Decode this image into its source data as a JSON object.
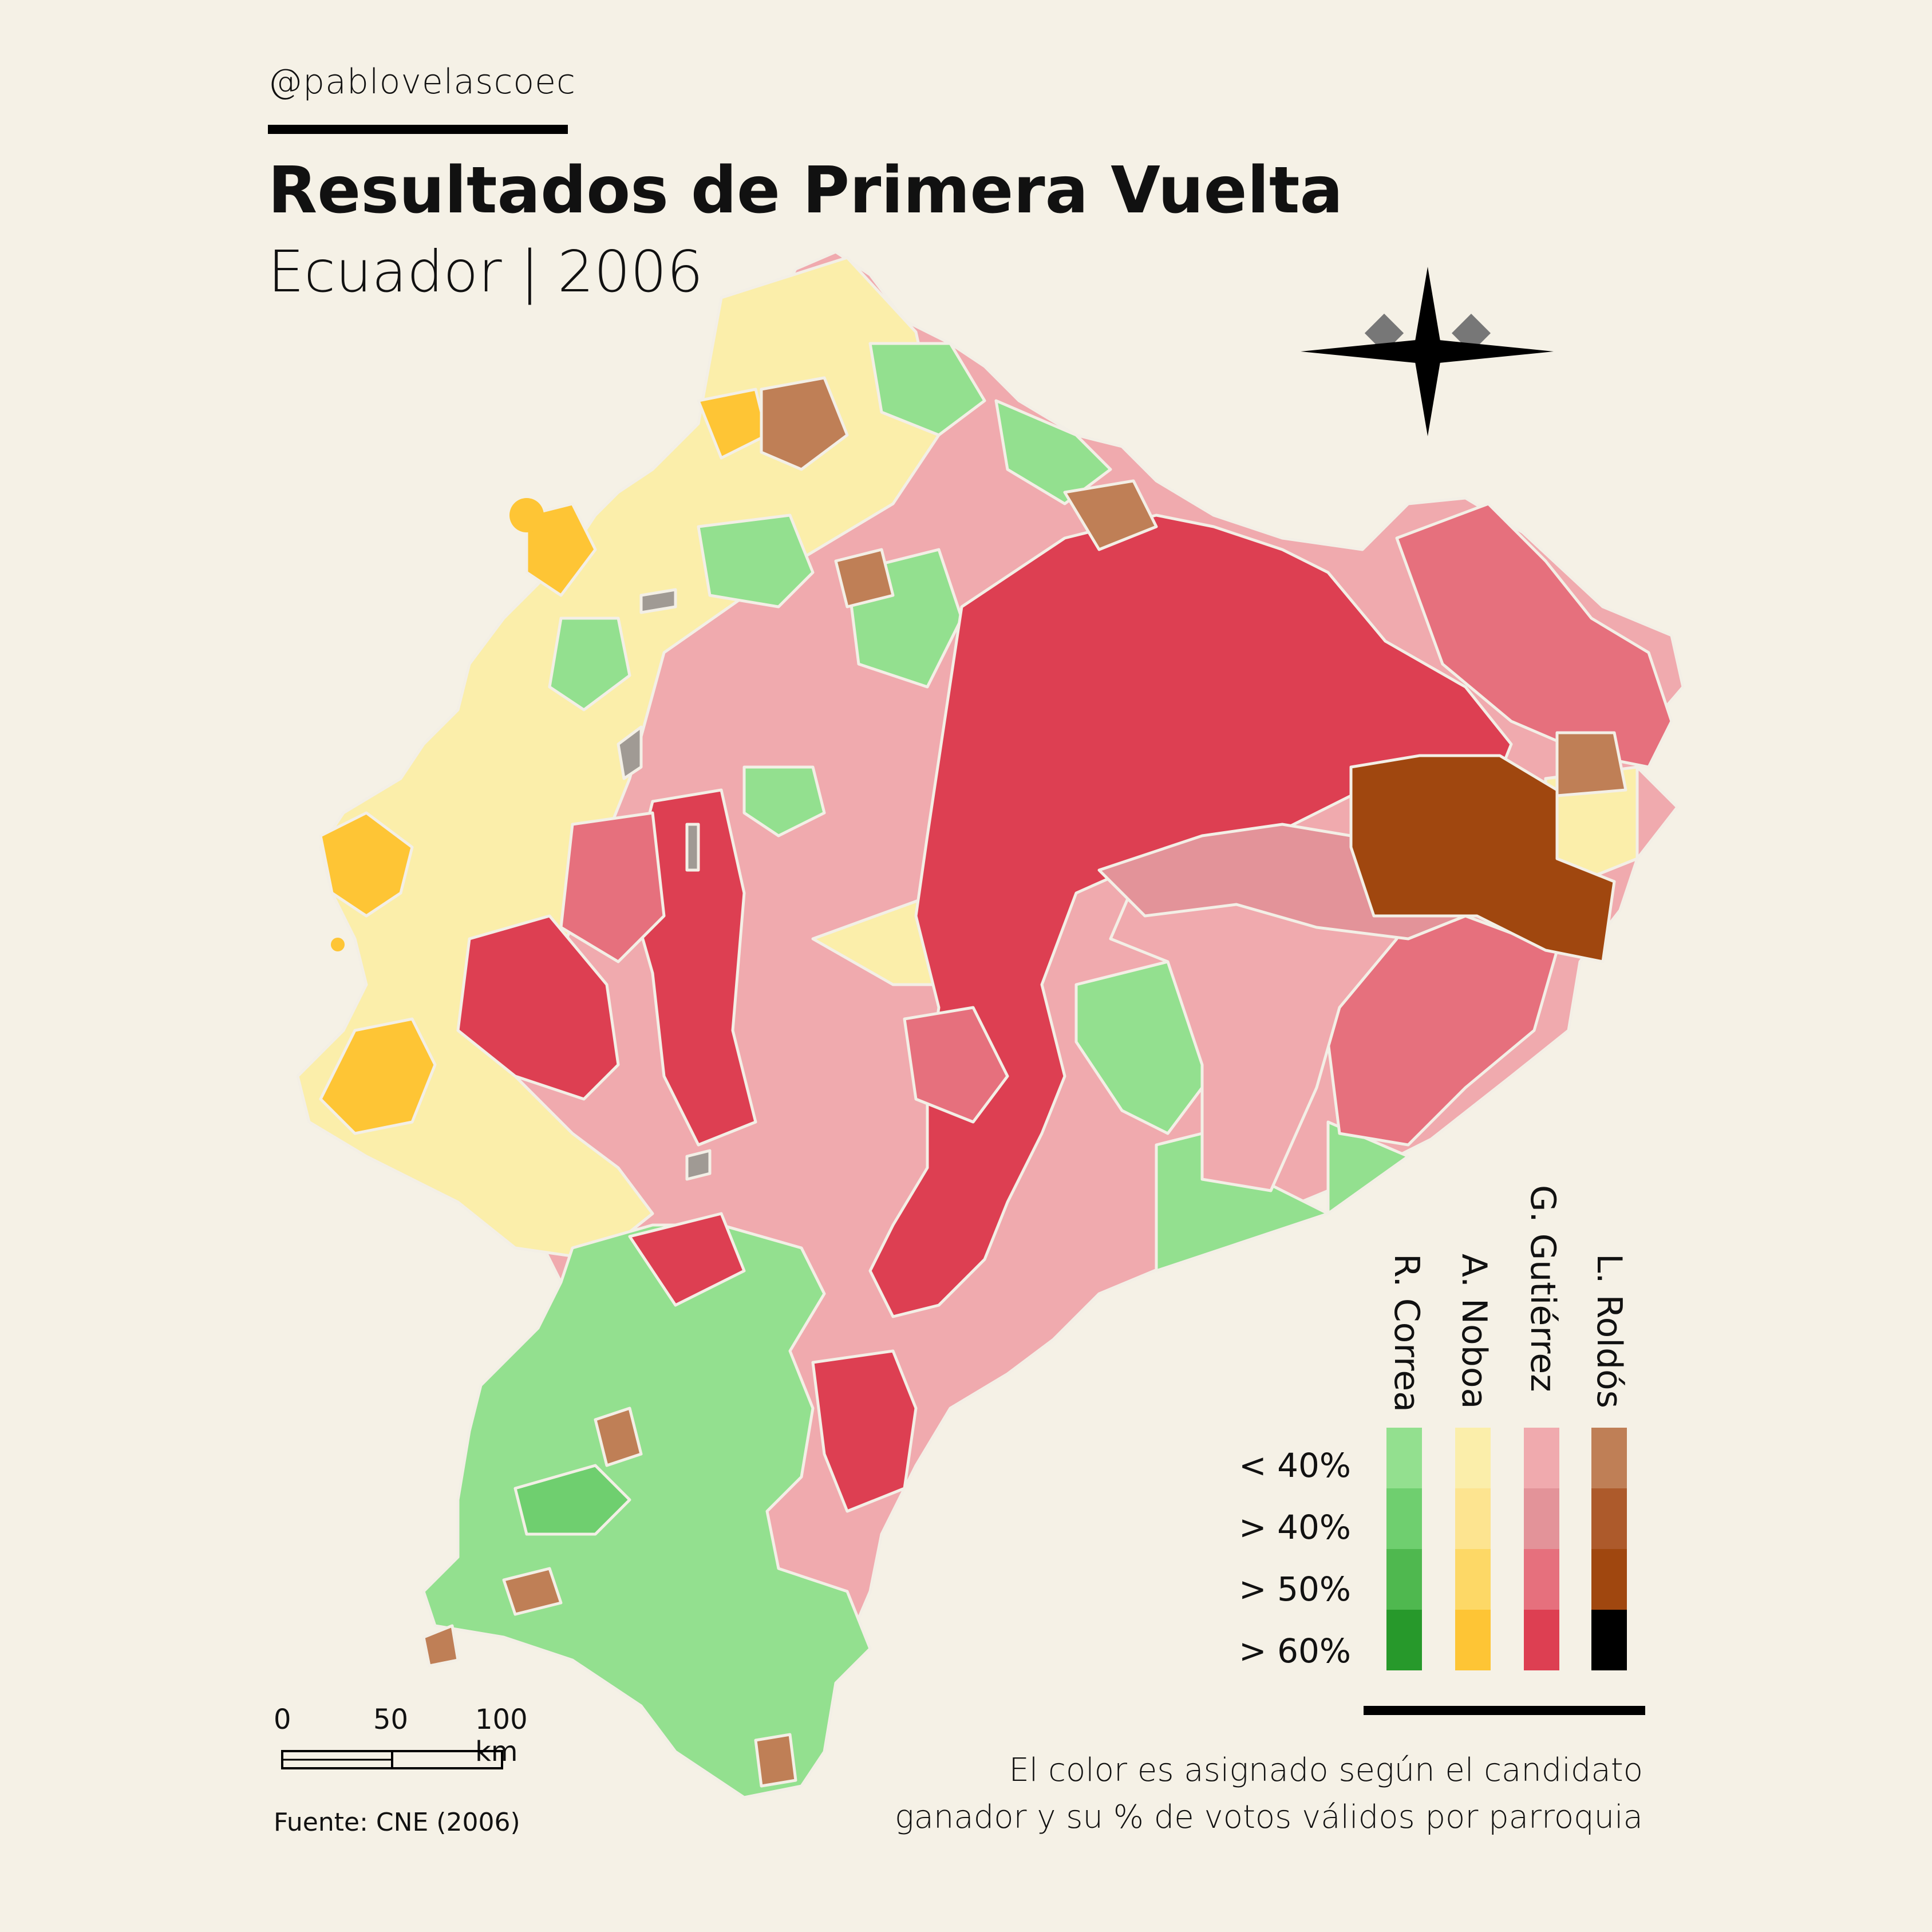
{
  "header": {
    "handle": "@pablovelascoec",
    "title": "Resultados de Primera Vuelta",
    "subtitle": "Ecuador | 2006"
  },
  "legend": {
    "candidates": [
      {
        "name": "R. Correa",
        "colors": [
          "#93e08f",
          "#6fcf6f",
          "#4fb84f",
          "#27992b"
        ]
      },
      {
        "name": "A. Noboa",
        "colors": [
          "#fbeeaa",
          "#fde490",
          "#fdd866",
          "#fec535"
        ]
      },
      {
        "name": "G. Gutiérrez",
        "colors": [
          "#f0aaae",
          "#e39399",
          "#e6707d",
          "#dd3f52"
        ]
      },
      {
        "name": "L. Roldós",
        "colors": [
          "#bf7f56",
          "#ad5a2b",
          "#a0470f",
          "#000000"
        ]
      }
    ],
    "thresholds": [
      "< 40%",
      "> 40%",
      "> 50%",
      "> 60%"
    ]
  },
  "scale_bar": {
    "labels": [
      "0",
      "50",
      "100 km"
    ]
  },
  "note": {
    "line1": "El color es asignado según el candidato",
    "line2": "ganador y su % de votos válidos por parroquia"
  },
  "source": "Fuente: CNE (2006)",
  "map_colors": {
    "correa_light": "#93e08f",
    "correa_mid": "#6fcf6f",
    "noboa_light": "#fbeeaa",
    "noboa_high": "#fec535",
    "gutierrez_light": "#f0aaae",
    "gutierrez_mid": "#e39399",
    "gutierrez_high": "#e6707d",
    "gutierrez_max": "#dd3f52",
    "roldos_light": "#bf7f56",
    "roldos_high": "#a0470f",
    "no_data": "#a09a94",
    "border": "#f3efe6"
  }
}
